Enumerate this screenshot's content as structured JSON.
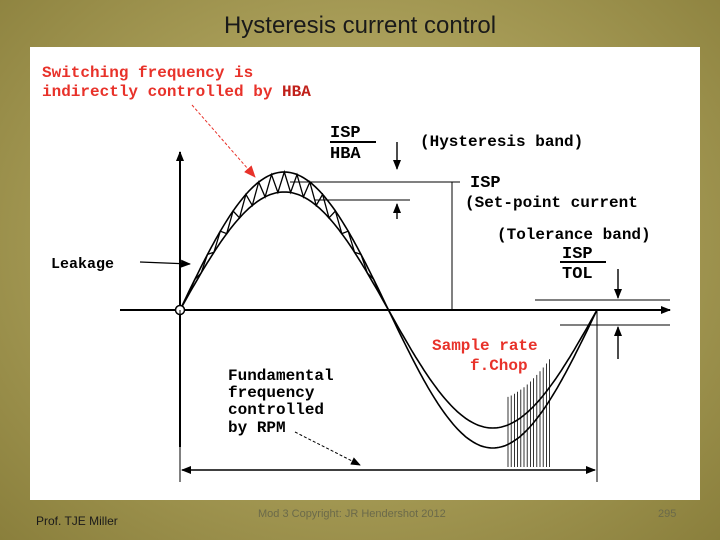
{
  "slide": {
    "title": "Hysteresis current control"
  },
  "diagram": {
    "note_line1": "Switching frequency is",
    "note_line2_prefix": "indirectly controlled by ",
    "note_line2_highlight": "HBA",
    "hba_num": "ISP",
    "hba_den": "HBA",
    "hysteresis_band_label": "(Hysteresis band)",
    "isp_label": "ISP",
    "setpoint_label": "(Set-point current",
    "tolerance_label": "(Tolerance band)",
    "tol_num": "ISP",
    "tol_den": "TOL",
    "leakage_label": "Leakage",
    "sample_rate_line1": "Sample rate",
    "sample_rate_line2": "f.Chop",
    "fund_line1": "Fundamental",
    "fund_line2": "frequency",
    "fund_line3": "controlled",
    "fund_line4_prefix": "by ",
    "fund_line4_highlight": "RPM",
    "highlight_color": "#e8322a"
  },
  "footer": {
    "author": "Prof. TJE Miller",
    "copyright": "Mod 3 Copyright: JR Hendershot 2012",
    "page": "295"
  }
}
